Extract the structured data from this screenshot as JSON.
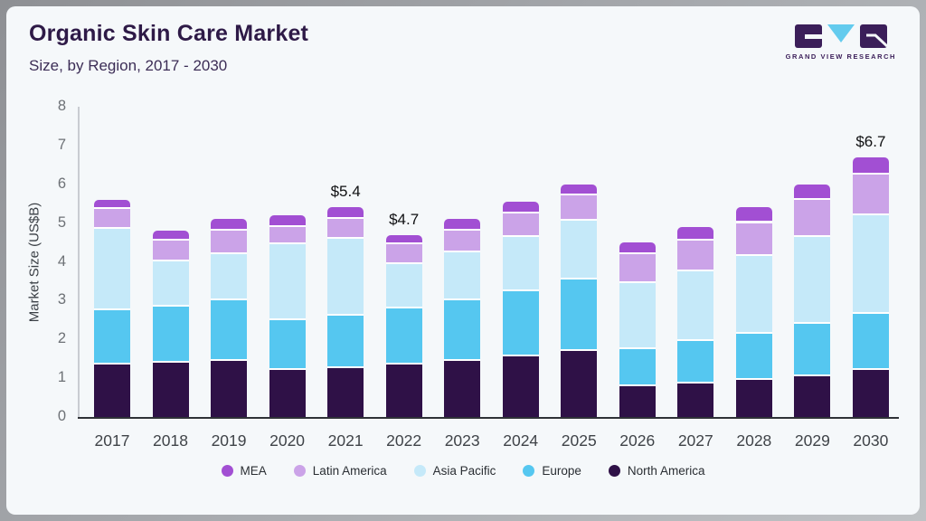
{
  "header": {
    "title": "Organic Skin Care Market",
    "subtitle": "Size, by Region, 2017 - 2030",
    "logo_text": "GRAND VIEW RESEARCH"
  },
  "colors": {
    "card_background": "#f5f8fa",
    "title": "#2e1a47",
    "axis_line": "#2f3237",
    "logo_purple": "#3b1e59",
    "logo_blue": "#63cbee"
  },
  "chart_data": {
    "type": "bar",
    "stacked": true,
    "title": "Organic Skin Care Market Size, by Region, 2017 - 2030",
    "xlabel": "",
    "ylabel": "Market Size (US$B)",
    "ylim": [
      0,
      8
    ],
    "yticks": [
      0,
      1,
      2,
      3,
      4,
      5,
      6,
      7,
      8
    ],
    "grid": false,
    "legend_position": "bottom",
    "categories": [
      2017,
      2018,
      2019,
      2020,
      2021,
      2022,
      2023,
      2024,
      2025,
      2026,
      2027,
      2028,
      2029,
      2030
    ],
    "series": [
      {
        "name": "North America",
        "color": "#2f1147",
        "values": [
          1.4,
          1.45,
          1.5,
          1.25,
          1.3,
          1.4,
          1.5,
          1.6,
          1.75,
          0.85,
          0.9,
          1.0,
          1.1,
          1.25
        ]
      },
      {
        "name": "Europe",
        "color": "#55c7f0",
        "values": [
          1.4,
          1.45,
          1.55,
          1.3,
          1.35,
          1.45,
          1.55,
          1.7,
          1.85,
          0.95,
          1.1,
          1.2,
          1.35,
          1.45
        ]
      },
      {
        "name": "Asia Pacific",
        "color": "#c5e9f9",
        "values": [
          2.1,
          1.15,
          1.2,
          1.95,
          2.0,
          1.15,
          1.25,
          1.4,
          1.5,
          1.7,
          1.8,
          2.0,
          2.25,
          2.55
        ]
      },
      {
        "name": "Latin America",
        "color": "#cba3e8",
        "values": [
          0.5,
          0.55,
          0.6,
          0.45,
          0.5,
          0.5,
          0.55,
          0.6,
          0.65,
          0.75,
          0.8,
          0.85,
          0.95,
          1.05
        ]
      },
      {
        "name": "MEA",
        "color": "#a24fd3",
        "values": [
          0.2,
          0.2,
          0.25,
          0.25,
          0.25,
          0.2,
          0.25,
          0.25,
          0.25,
          0.25,
          0.3,
          0.35,
          0.35,
          0.4
        ]
      }
    ],
    "totals": [
      5.6,
      4.8,
      5.1,
      5.2,
      5.4,
      4.7,
      5.1,
      5.55,
      6.0,
      4.5,
      4.9,
      5.4,
      6.0,
      6.7
    ],
    "annotations": [
      {
        "x": 2021,
        "label": "$5.4"
      },
      {
        "x": 2022,
        "label": "$4.7"
      },
      {
        "x": 2030,
        "label": "$6.7"
      }
    ],
    "legend": [
      "MEA",
      "Latin America",
      "Asia Pacific",
      "Europe",
      "North America"
    ]
  }
}
